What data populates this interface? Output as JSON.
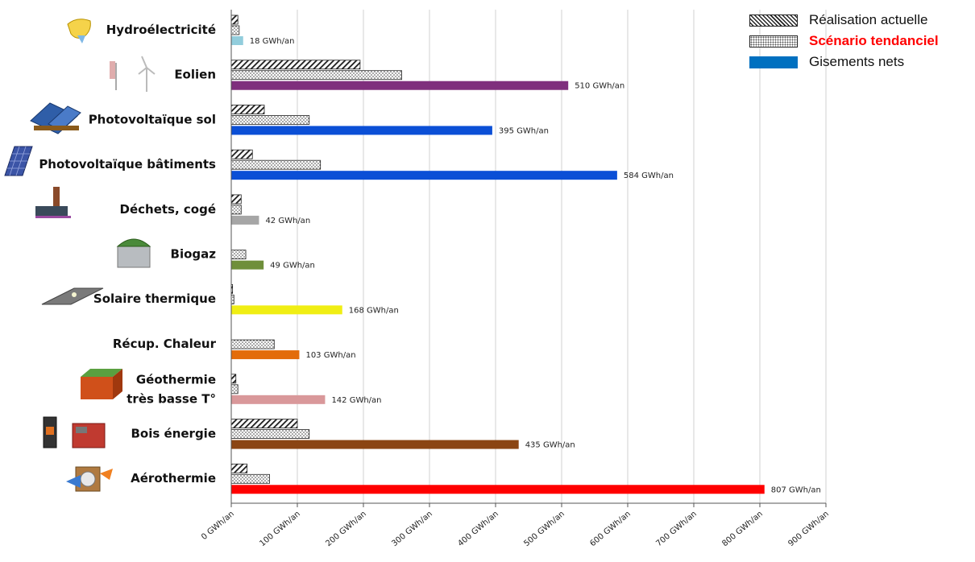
{
  "chart_data": {
    "type": "bar",
    "orientation": "horizontal",
    "categories": [
      "Hydroélectricité",
      "Eolien",
      "Photovoltaïque sol",
      "Photovoltaïque bâtiments",
      "Déchets, cogé",
      "Biogaz",
      "Solaire thermique",
      "Récup. Chaleur",
      "Géothermie très basse T°",
      "Bois énergie",
      "Aérothermie"
    ],
    "category_lines": [
      [
        "Hydroélectricité"
      ],
      [
        "Eolien"
      ],
      [
        "Photovoltaïque sol"
      ],
      [
        "Photovoltaïque bâtiments"
      ],
      [
        "Déchets, cogé"
      ],
      [
        "Biogaz"
      ],
      [
        "Solaire thermique"
      ],
      [
        "Récup. Chaleur"
      ],
      [
        "Géothermie",
        "très basse T°"
      ],
      [
        "Bois énergie"
      ],
      [
        "Aérothermie"
      ]
    ],
    "category_icons": [
      "hydro-turbine-icon",
      "wind-turbine-icon",
      "solar-panel-field-icon",
      "solar-panel-roof-icon",
      "waste-plant-chimney-icon",
      "biogas-tank-icon",
      "solar-thermal-panel-icon",
      "",
      "geothermal-cube-icon",
      "wood-stove-icon",
      "heat-pump-icon"
    ],
    "series": [
      {
        "name": "Réalisation actuelle",
        "pattern": "hatch",
        "values": [
          10,
          195,
          50,
          32,
          15,
          0,
          2,
          0,
          7,
          100,
          24
        ]
      },
      {
        "name": "Scénario tendanciel",
        "pattern": "dots",
        "values": [
          12,
          258,
          118,
          135,
          15,
          22,
          4,
          65,
          10,
          118,
          58
        ]
      },
      {
        "name": "Gisements nets",
        "pattern": "solid",
        "values": [
          18,
          510,
          395,
          584,
          42,
          49,
          168,
          103,
          142,
          435,
          807
        ],
        "labels": [
          "18 GWh/an",
          "510 GWh/an",
          "395 GWh/an",
          "584 GWh/an",
          "42 GWh/an",
          "49 GWh/an",
          "168 GWh/an",
          "103 GWh/an",
          "142 GWh/an",
          "435 GWh/an",
          "807 GWh/an"
        ],
        "colors": [
          "#92cddc",
          "#7f2f7d",
          "#0b4fd6",
          "#0b4fd6",
          "#a6a6a6",
          "#6f8f3a",
          "#f0ee14",
          "#e36c0a",
          "#d9989a",
          "#8b4513",
          "#ff0000"
        ]
      }
    ],
    "x_ticks": [
      "0 GWh/an",
      "100 GWh/an",
      "200 GWh/an",
      "300 GWh/an",
      "400 GWh/an",
      "500 GWh/an",
      "600 GWh/an",
      "700 GWh/an",
      "800 GWh/an",
      "900 GWh/an"
    ],
    "xlim": [
      0,
      900
    ],
    "grid": true,
    "legend_position": "top-right"
  },
  "legend": {
    "items": [
      {
        "label": "Réalisation actuelle",
        "color": "#111111"
      },
      {
        "label": "Scénario tendanciel",
        "color": "#ff0000"
      },
      {
        "label": "Gisements nets",
        "color": "#111111",
        "swatch": "#0070c0"
      }
    ]
  }
}
